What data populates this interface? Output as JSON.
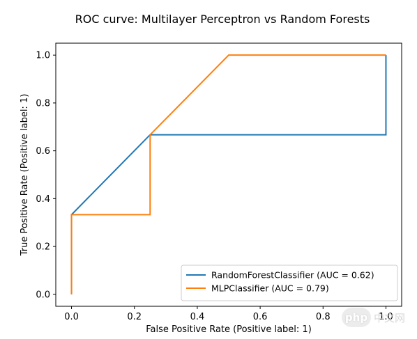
{
  "chart_data": {
    "type": "line",
    "title": "ROC curve: Multilayer Perceptron vs Random Forests",
    "xlabel": "False Positive Rate (Positive label: 1)",
    "ylabel": "True Positive Rate (Positive label: 1)",
    "xlim": [
      -0.05,
      1.05
    ],
    "ylim": [
      -0.05,
      1.05
    ],
    "xticks": [
      0.0,
      0.2,
      0.4,
      0.6,
      0.8,
      1.0
    ],
    "xtick_labels": [
      "0.0",
      "0.2",
      "0.4",
      "0.6",
      "0.8",
      "1.0"
    ],
    "yticks": [
      0.0,
      0.2,
      0.4,
      0.6,
      0.8,
      1.0
    ],
    "ytick_labels": [
      "0.0",
      "0.2",
      "0.4",
      "0.6",
      "0.8",
      "1.0"
    ],
    "grid": false,
    "legend_position": "lower-right",
    "series": [
      {
        "name": "RandomForestClassifier (AUC = 0.62)",
        "color": "#1f77b4",
        "x": [
          0.0,
          0.0,
          0.25,
          1.0,
          1.0
        ],
        "y": [
          0.0,
          0.333,
          0.667,
          0.667,
          1.0
        ]
      },
      {
        "name": "MLPClassifier (AUC = 0.79)",
        "color": "#ff7f0e",
        "x": [
          0.0,
          0.0,
          0.25,
          0.25,
          0.5,
          1.0
        ],
        "y": [
          0.0,
          0.333,
          0.333,
          0.667,
          1.0,
          1.0
        ]
      }
    ]
  },
  "watermark": {
    "logo_text": "php",
    "text": "中文网"
  }
}
